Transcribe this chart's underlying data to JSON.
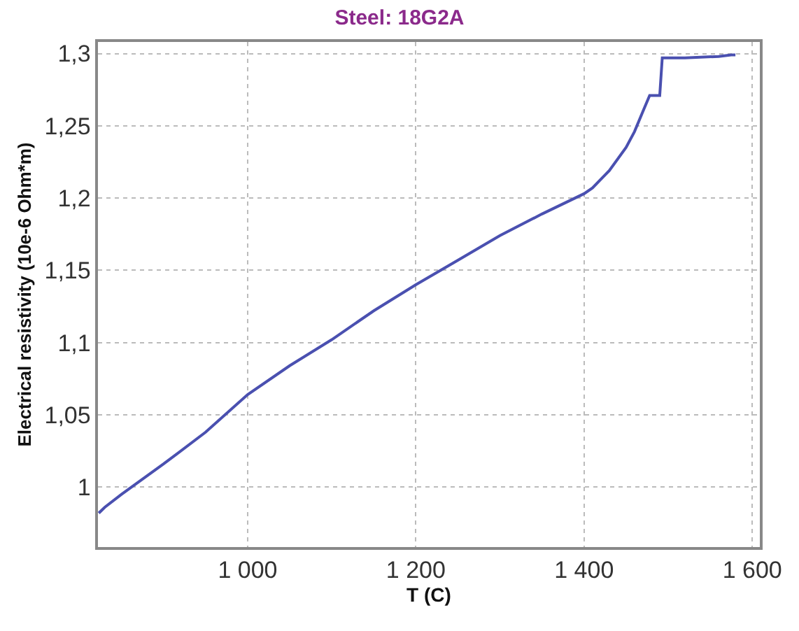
{
  "chart_data": {
    "type": "line",
    "title": "Steel: 18G2A",
    "xlabel": "T (C)",
    "ylabel": "Electrical resistivity (10e-6 Ohm*m)",
    "x": [
      823,
      830,
      850,
      900,
      950,
      1000,
      1050,
      1100,
      1150,
      1200,
      1250,
      1300,
      1350,
      1400,
      1410,
      1430,
      1450,
      1460,
      1470,
      1478,
      1484,
      1490,
      1493,
      1520,
      1560,
      1575,
      1580
    ],
    "series": [
      {
        "color": "#4a50b0",
        "values": [
          0.982,
          0.986,
          0.995,
          1.016,
          1.038,
          1.064,
          1.084,
          1.102,
          1.122,
          1.14,
          1.157,
          1.174,
          1.189,
          1.203,
          1.207,
          1.219,
          1.235,
          1.246,
          1.26,
          1.271,
          1.271,
          1.271,
          1.297,
          1.297,
          1.298,
          1.299,
          1.299
        ]
      }
    ],
    "xlim": [
      822,
      1609
    ],
    "ylim": [
      0.9585,
      1.308
    ],
    "xticks": [
      {
        "value": 1000,
        "label": "1 000"
      },
      {
        "value": 1200,
        "label": "1 200"
      },
      {
        "value": 1400,
        "label": "1 400"
      },
      {
        "value": 1600,
        "label": "1 600"
      }
    ],
    "yticks": [
      {
        "value": 1,
        "label": "1"
      },
      {
        "value": 1.05,
        "label": "1,05"
      },
      {
        "value": 1.1,
        "label": "1,1"
      },
      {
        "value": 1.15,
        "label": "1,15"
      },
      {
        "value": 1.2,
        "label": "1,2"
      },
      {
        "value": 1.25,
        "label": "1,25"
      },
      {
        "value": 1.3,
        "label": "1,3"
      }
    ],
    "grid": true,
    "marker": "none",
    "line_style": "solid"
  }
}
